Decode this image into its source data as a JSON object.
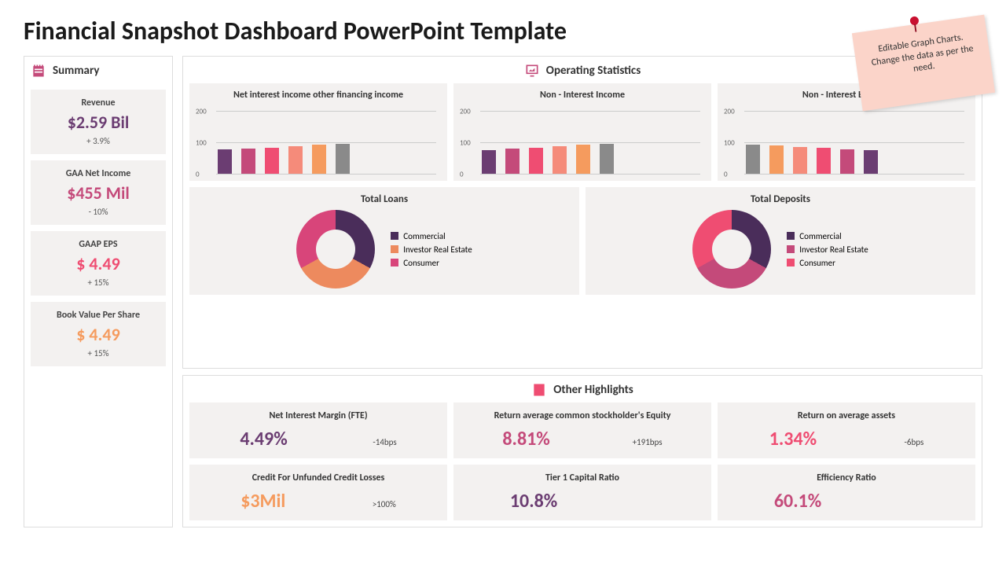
{
  "title": "Financial Snapshot Dashboard PowerPoint Template",
  "sticky_note": "Editable Graph Charts. Change the data as per the need.",
  "colors": {
    "purple": "#6b3d72",
    "magenta": "#c44a7a",
    "pink": "#ef4d72",
    "pink_light": "#f58b7a",
    "orange": "#f59b5e",
    "gray": "#8a8a8a",
    "donut_purple": "#4a2d5a",
    "donut_orange": "#ed8a5e",
    "donut_pink": "#d8457a"
  },
  "summary": {
    "heading": "Summary",
    "items": [
      {
        "label": "Revenue",
        "value": "$2.59 Bil",
        "sub": "+ 3.9%",
        "color": "#6b3d72"
      },
      {
        "label": "GAA Net Income",
        "value": "$455 Mil",
        "sub": "- 10%",
        "color": "#c44a7a"
      },
      {
        "label": "GAAP EPS",
        "value": "$ 4.49",
        "sub": "+ 15%",
        "color": "#ef4d72"
      },
      {
        "label": "Book Value Per Share",
        "value": "$ 4.49",
        "sub": "+ 15%",
        "color": "#f59b5e"
      }
    ]
  },
  "operating": {
    "heading": "Operating Statistics",
    "bar_charts": [
      {
        "title": "Net interest income other financing income",
        "yticks": [
          0,
          100,
          200
        ],
        "ymax": 200,
        "bars": [
          {
            "v": 80,
            "c": "#6b3d72"
          },
          {
            "v": 82,
            "c": "#c44a7a"
          },
          {
            "v": 85,
            "c": "#ef4d72"
          },
          {
            "v": 90,
            "c": "#f58b7a"
          },
          {
            "v": 95,
            "c": "#f59b5e"
          },
          {
            "v": 98,
            "c": "#8a8a8a"
          }
        ]
      },
      {
        "title": "Non - Interest Income",
        "yticks": [
          0,
          100,
          200
        ],
        "ymax": 200,
        "bars": [
          {
            "v": 78,
            "c": "#6b3d72"
          },
          {
            "v": 82,
            "c": "#c44a7a"
          },
          {
            "v": 84,
            "c": "#ef4d72"
          },
          {
            "v": 90,
            "c": "#f58b7a"
          },
          {
            "v": 95,
            "c": "#f59b5e"
          },
          {
            "v": 98,
            "c": "#8a8a8a"
          }
        ]
      },
      {
        "title": "Non - Interest Expense",
        "yticks": [
          0,
          100,
          200
        ],
        "ymax": 200,
        "bars": [
          {
            "v": 95,
            "c": "#8a8a8a"
          },
          {
            "v": 92,
            "c": "#f59b5e"
          },
          {
            "v": 88,
            "c": "#f58b7a"
          },
          {
            "v": 84,
            "c": "#ef4d72"
          },
          {
            "v": 80,
            "c": "#c44a7a"
          },
          {
            "v": 78,
            "c": "#6b3d72"
          }
        ]
      }
    ],
    "donuts": [
      {
        "title": "Total Loans",
        "slices": [
          {
            "label": "Commercial",
            "v": 33,
            "c": "#4a2d5a"
          },
          {
            "label": "Investor Real Estate",
            "v": 34,
            "c": "#ed8a5e"
          },
          {
            "label": "Consumer",
            "v": 33,
            "c": "#d8457a"
          }
        ]
      },
      {
        "title": "Total Deposits",
        "slices": [
          {
            "label": "Commercial",
            "v": 33,
            "c": "#4a2d5a"
          },
          {
            "label": "Investor Real Estate",
            "v": 34,
            "c": "#c44a7a"
          },
          {
            "label": "Consumer",
            "v": 33,
            "c": "#ef4d72"
          }
        ]
      }
    ]
  },
  "highlights": {
    "heading": "Other Highlights",
    "row1": [
      {
        "label": "Net Interest Margin (FTE)",
        "value": "4.49%",
        "sub": "-14bps",
        "color": "#6b3d72"
      },
      {
        "label": "Return average common stockholder's Equity",
        "value": "8.81%",
        "sub": "+191bps",
        "color": "#c44a7a"
      },
      {
        "label": "Return on average assets",
        "value": "1.34%",
        "sub": "-6bps",
        "color": "#ef4d72"
      }
    ],
    "row2": [
      {
        "label": "Credit For Unfunded Credit Losses",
        "value": "$3Mil",
        "sub": ">100%",
        "color": "#f59b5e"
      },
      {
        "label": "Tier 1 Capital Ratio",
        "value": "10.8%",
        "sub": "",
        "color": "#6b3d72"
      },
      {
        "label": "Efficiency Ratio",
        "value": "60.1%",
        "sub": "",
        "color": "#c44a7a"
      }
    ]
  }
}
